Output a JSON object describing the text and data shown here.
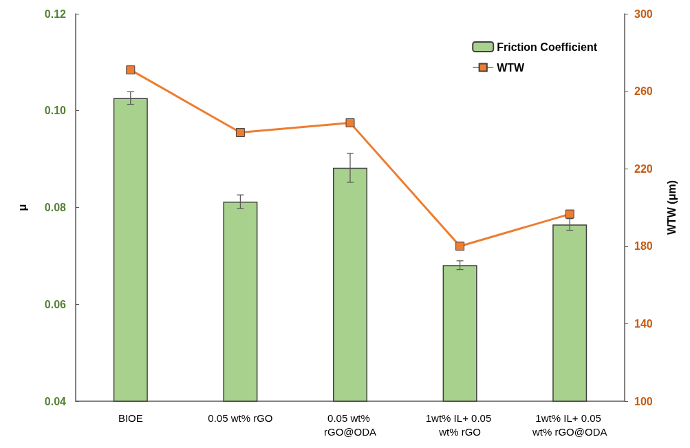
{
  "chart_data": {
    "type": "bar",
    "categories": [
      "BIOE",
      "0.05 wt% rGO",
      "0.05 wt% rGO@ODA",
      "1wt% IL+ 0.05 wt% rGO",
      "1wt% IL+ 0.05 wt% rGO@ODA"
    ],
    "ylabel": "μ",
    "y2label": "WTW (μm)",
    "series": [
      {
        "name": "Friction Coefficient",
        "color": "#a9d18e",
        "values": [
          0.1026,
          0.0812,
          0.0882,
          0.0681,
          0.0765
        ],
        "errors": [
          0.0013,
          0.0014,
          0.003,
          0.0009,
          0.0012
        ]
      },
      {
        "name": "WTW",
        "type": "line",
        "axis": "y2",
        "color": "#ed7d31",
        "marker": "square",
        "line_style": "solid",
        "values": [
          271,
          238.7,
          243.7,
          180,
          196.6
        ]
      }
    ],
    "ylim": [
      0.04,
      0.12
    ],
    "yticks": [
      {
        "value": 0.04,
        "label": "0.04"
      },
      {
        "value": 0.06,
        "label": "0.06"
      },
      {
        "value": 0.08,
        "label": "0.08"
      },
      {
        "value": 0.1,
        "label": "0.10"
      },
      {
        "value": 0.12,
        "label": "0.12"
      }
    ],
    "y2lim": [
      100,
      300
    ],
    "y2ticks": [
      100,
      140,
      180,
      220,
      260,
      300
    ],
    "grid": false,
    "legend": "top right"
  }
}
